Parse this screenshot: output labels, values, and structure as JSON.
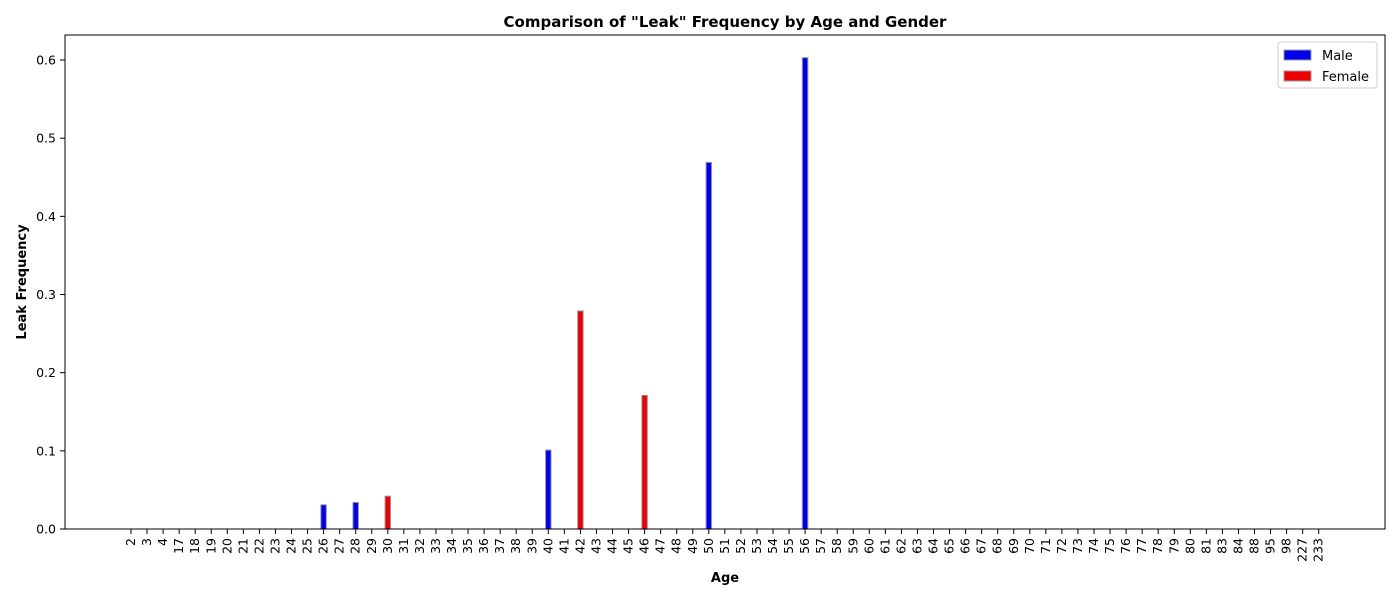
{
  "chart_data": {
    "type": "bar",
    "title": "Comparison of \"Leak\" Frequency by Age and Gender",
    "xlabel": "Age",
    "ylabel": "Leak Frequency",
    "ylim": [
      0,
      0.632
    ],
    "yticks": [
      0.0,
      0.1,
      0.2,
      0.3,
      0.4,
      0.5,
      0.6
    ],
    "ytick_labels": [
      "0.0",
      "0.1",
      "0.2",
      "0.3",
      "0.4",
      "0.5",
      "0.6"
    ],
    "grid": false,
    "legend": "top-right",
    "categories": [
      "2",
      "3",
      "4",
      "17",
      "18",
      "19",
      "20",
      "21",
      "22",
      "23",
      "24",
      "25",
      "26",
      "27",
      "28",
      "29",
      "30",
      "31",
      "32",
      "33",
      "34",
      "35",
      "36",
      "37",
      "38",
      "39",
      "40",
      "41",
      "42",
      "43",
      "44",
      "45",
      "46",
      "47",
      "48",
      "49",
      "50",
      "51",
      "52",
      "53",
      "54",
      "55",
      "56",
      "57",
      "58",
      "59",
      "60",
      "61",
      "62",
      "63",
      "64",
      "65",
      "66",
      "67",
      "68",
      "69",
      "70",
      "71",
      "72",
      "73",
      "74",
      "75",
      "76",
      "77",
      "78",
      "79",
      "80",
      "81",
      "83",
      "84",
      "88",
      "95",
      "98",
      "227",
      "233"
    ],
    "series": [
      {
        "name": "Male",
        "color": "#0000ee",
        "values": {
          "26": 0.031,
          "28": 0.034,
          "40": 0.101,
          "50": 0.469,
          "56": 0.603
        }
      },
      {
        "name": "Female",
        "color": "#ee0000",
        "values": {
          "30": 0.042,
          "42": 0.279,
          "46": 0.171
        }
      }
    ]
  }
}
